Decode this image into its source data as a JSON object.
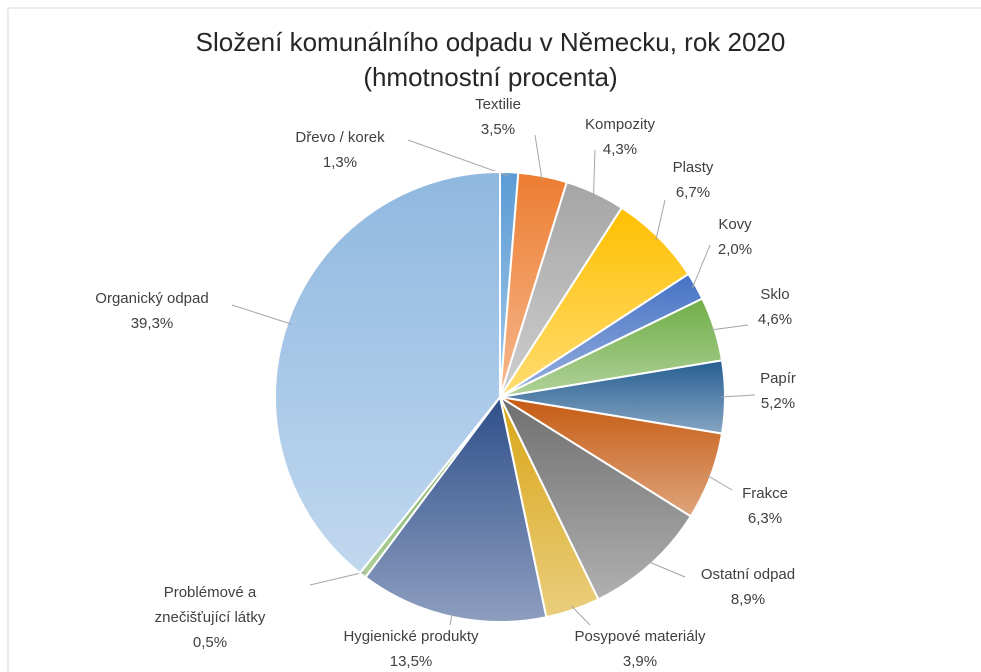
{
  "chart_data": {
    "type": "pie",
    "title": "Složení komunálního odpadu v Německu, rok 2020",
    "subtitle": "(hmotnostní procenta)",
    "categories": [
      "Dřevo / korek",
      "Textilie",
      "Kompozity",
      "Plasty",
      "Kovy",
      "Sklo",
      "Papír",
      "Frakce",
      "Ostatní odpad",
      "Posypové materiály",
      "Hygienické produkty",
      "Problémové a znečišťující látky",
      "Organický odpad"
    ],
    "values": [
      1.3,
      3.5,
      4.3,
      6.7,
      2.0,
      4.6,
      5.2,
      6.3,
      8.9,
      3.9,
      13.5,
      0.5,
      39.3
    ],
    "value_labels": [
      "1,3%",
      "3,5%",
      "4,3%",
      "6,7%",
      "2,0%",
      "4,6%",
      "5,2%",
      "6,3%",
      "8,9%",
      "3,9%",
      "13,5%",
      "0,5%",
      "39,3%"
    ],
    "colors": [
      "#5b9bd5",
      "#ed7d31",
      "#a5a5a5",
      "#ffc000",
      "#4472c4",
      "#70ad47",
      "#255e91",
      "#c55a11",
      "#6f6f6f",
      "#d9a514",
      "#2f4f8a",
      "#6ea84a",
      "#8fb8e0"
    ]
  }
}
